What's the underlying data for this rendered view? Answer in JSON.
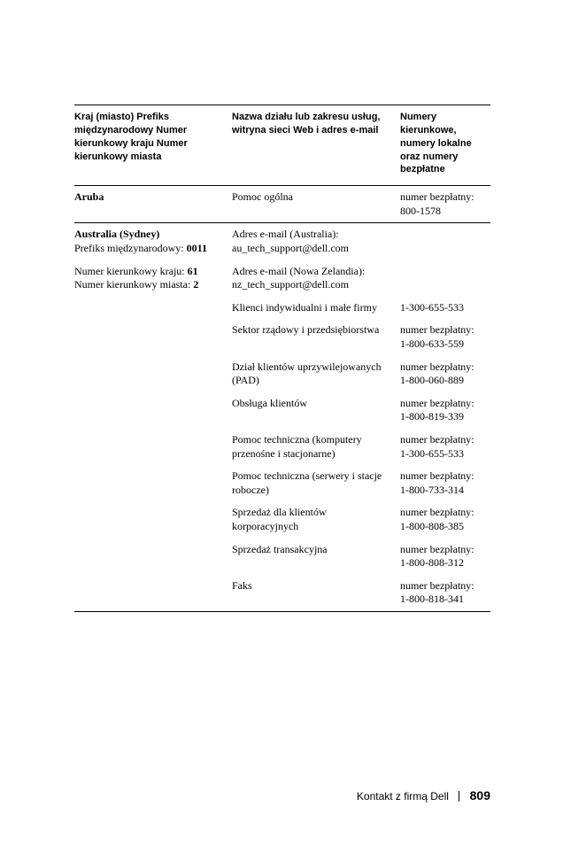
{
  "headers": {
    "col1": "Kraj (miasto)\nPrefiks międzynarodowy\nNumer kierunkowy kraju\nNumer kierunkowy miasta",
    "col2": "Nazwa działu lub zakresu usług, witryna sieci Web i adres e-mail",
    "col3": "Numery kierunkowe, numery lokalne oraz numery bezpłatne"
  },
  "rows": [
    {
      "c1_bold": "Aruba",
      "c2": "Pomoc ogólna",
      "c3": "numer bezpłatny: 800-1578",
      "sep_after": true
    },
    {
      "c1_bold": "Australia (Sydney)",
      "c2": "Adres e-mail (Australia): au_tech_support@dell.com",
      "c3": ""
    },
    {
      "c1_html": "Prefiks międzynarodowy: <b>0011</b>"
    },
    {
      "c1_html": "Numer kierunkowy kraju: <b>61</b>",
      "c2": "Adres e-mail (Nowa Zelandia): nz_tech_support@dell.com",
      "c3": ""
    },
    {
      "c1_html": "Numer kierunkowy miasta: <b>2</b>"
    },
    {
      "c2": "Klienci indywidualni i małe firmy",
      "c3": "1-300-655-533"
    },
    {
      "c2": "Sektor rządowy i przedsiębiorstwa",
      "c3": "numer bezpłatny: 1-800-633-559"
    },
    {
      "c2": "Dział klientów uprzywilejowanych (PAD)",
      "c3": "numer bezpłatny: 1-800-060-889"
    },
    {
      "c2": "Obsługa klientów",
      "c3": "numer bezpłatny: 1-800-819-339"
    },
    {
      "c2": "Pomoc techniczna (komputery przenośne i stacjonarne)",
      "c3": "numer bezpłatny: 1-300-655-533"
    },
    {
      "c2": "Pomoc techniczna (serwery i stacje robocze)",
      "c3": "numer bezpłatny: 1-800-733-314"
    },
    {
      "c2": "Sprzedaż dla klientów korporacyjnych",
      "c3": "numer bezpłatny: 1-800-808-385"
    },
    {
      "c2": "Sprzedaż transakcyjna",
      "c3": "numer bezpłatny: 1-800-808-312"
    },
    {
      "c2": "Faks",
      "c3": "numer bezpłatny: 1-800-818-341",
      "sep_after": true
    }
  ],
  "footer": {
    "title": "Kontakt z firmą Dell",
    "page": "809"
  }
}
